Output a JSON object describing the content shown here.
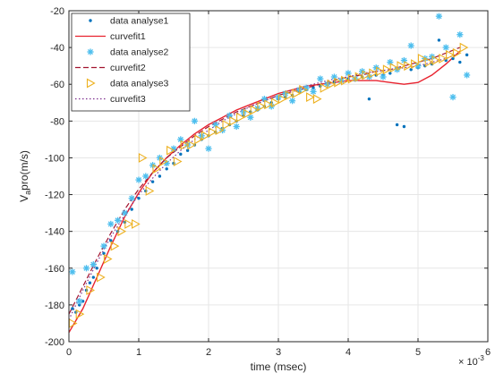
{
  "chart_data": {
    "type": "scatter",
    "title": "",
    "xlabel": "time (msec)",
    "ylabel": "V",
    "ylabel_sub": "a",
    "ylabel_rest": "pro(m/s)",
    "x_exponent_label": "× 10",
    "x_exponent_power": "-3",
    "xlim": [
      0,
      6
    ],
    "ylim": [
      -200,
      -20
    ],
    "x_ticks": [
      0,
      1,
      2,
      3,
      4,
      5,
      6
    ],
    "y_ticks": [
      -200,
      -180,
      -160,
      -140,
      -120,
      -100,
      -80,
      -60,
      -40,
      -20
    ],
    "grid": true,
    "legend_position": "top-left",
    "legend": [
      {
        "label": "data analyse1",
        "style": "dot",
        "color": "#0072bd"
      },
      {
        "label": "curvefit1",
        "style": "line",
        "color": "#e8222e"
      },
      {
        "label": "data analyse2",
        "style": "asterisk",
        "color": "#4dbeee"
      },
      {
        "label": "curvefit2",
        "style": "dashed",
        "color": "#a2142f"
      },
      {
        "label": "data analyse3",
        "style": "triangle",
        "color": "#edb120"
      },
      {
        "label": "curvefit3",
        "style": "dotted",
        "color": "#7e2f8e"
      }
    ],
    "series": [
      {
        "name": "data analyse1",
        "marker": "dot",
        "color": "#0072bd",
        "x": [
          0.05,
          0.1,
          0.15,
          0.2,
          0.25,
          0.3,
          0.35,
          0.4,
          0.5,
          0.6,
          0.7,
          0.8,
          0.9,
          1.0,
          1.1,
          1.2,
          1.3,
          1.4,
          1.5,
          1.6,
          1.7,
          1.8,
          1.9,
          2.0,
          2.1,
          2.2,
          2.3,
          2.4,
          2.5,
          2.6,
          2.7,
          2.8,
          2.9,
          3.0,
          3.1,
          3.2,
          3.3,
          3.4,
          3.5,
          3.6,
          3.7,
          3.8,
          3.9,
          4.0,
          4.1,
          4.2,
          4.3,
          4.4,
          4.5,
          4.6,
          4.7,
          4.8,
          4.9,
          5.0,
          5.1,
          5.2,
          5.3,
          5.4,
          5.5,
          5.6,
          5.7
        ],
        "y": [
          -182,
          -184,
          -180,
          -178,
          -172,
          -168,
          -165,
          -160,
          -152,
          -145,
          -140,
          -135,
          -128,
          -122,
          -118,
          -113,
          -110,
          -106,
          -103,
          -98,
          -96,
          -93,
          -90,
          -88,
          -86,
          -84,
          -82,
          -80,
          -77,
          -75,
          -74,
          -72,
          -70,
          -68,
          -67,
          -66,
          -64,
          -63,
          -62,
          -61,
          -60,
          -59,
          -58,
          -57,
          -57,
          -56,
          -68,
          -55,
          -55,
          -54,
          -82,
          -83,
          -52,
          -51,
          -50,
          -49,
          -36,
          -47,
          -46,
          -48,
          -44
        ]
      },
      {
        "name": "data analyse2",
        "marker": "asterisk",
        "color": "#4dbeee",
        "x": [
          0.05,
          0.15,
          0.25,
          0.35,
          0.5,
          0.6,
          0.7,
          0.8,
          0.9,
          1.0,
          1.1,
          1.2,
          1.3,
          1.4,
          1.5,
          1.6,
          1.7,
          1.8,
          1.9,
          2.0,
          2.1,
          2.2,
          2.3,
          2.4,
          2.5,
          2.6,
          2.7,
          2.8,
          2.9,
          3.0,
          3.1,
          3.2,
          3.3,
          3.4,
          3.5,
          3.6,
          3.7,
          3.8,
          3.9,
          4.0,
          4.1,
          4.2,
          4.3,
          4.4,
          4.5,
          4.6,
          4.7,
          4.8,
          4.9,
          5.0,
          5.1,
          5.2,
          5.3,
          5.4,
          5.5,
          5.6,
          5.7
        ],
        "y": [
          -162,
          -178,
          -160,
          -158,
          -148,
          -136,
          -134,
          -130,
          -122,
          -112,
          -110,
          -104,
          -100,
          -103,
          -95,
          -90,
          -93,
          -80,
          -88,
          -95,
          -82,
          -85,
          -77,
          -83,
          -75,
          -78,
          -73,
          -68,
          -72,
          -67,
          -65,
          -69,
          -63,
          -62,
          -64,
          -57,
          -60,
          -56,
          -58,
          -54,
          -57,
          -53,
          -56,
          -51,
          -56,
          -48,
          -52,
          -47,
          -39,
          -50,
          -46,
          -45,
          -23,
          -40,
          -67,
          -33,
          -55
        ]
      },
      {
        "name": "data analyse3",
        "marker": "triangle",
        "color": "#edb120",
        "x": [
          0.05,
          0.15,
          0.3,
          0.45,
          0.55,
          0.65,
          0.75,
          0.85,
          0.95,
          1.05,
          1.15,
          1.25,
          1.35,
          1.45,
          1.55,
          1.65,
          1.75,
          1.85,
          1.95,
          2.05,
          2.15,
          2.25,
          2.35,
          2.45,
          2.55,
          2.65,
          2.75,
          2.85,
          2.95,
          3.05,
          3.15,
          3.25,
          3.35,
          3.45,
          3.55,
          3.65,
          3.75,
          3.85,
          3.95,
          4.05,
          4.15,
          4.25,
          4.35,
          4.45,
          4.55,
          4.65,
          4.75,
          4.85,
          4.95,
          5.05,
          5.15,
          5.25,
          5.35,
          5.45,
          5.55,
          5.65
        ],
        "y": [
          -190,
          -185,
          -172,
          -165,
          -155,
          -148,
          -140,
          -136,
          -136,
          -100,
          -118,
          -106,
          -102,
          -96,
          -102,
          -93,
          -93,
          -90,
          -88,
          -86,
          -85,
          -82,
          -80,
          -78,
          -76,
          -74,
          -72,
          -71,
          -70,
          -68,
          -66,
          -65,
          -63,
          -67,
          -68,
          -62,
          -60,
          -59,
          -58,
          -57,
          -56,
          -55,
          -54,
          -53,
          -52,
          -51,
          -50,
          -50,
          -49,
          -46,
          -48,
          -47,
          -46,
          -44,
          -43,
          -40
        ]
      }
    ],
    "fits": [
      {
        "name": "curvefit1",
        "style": "solid",
        "color": "#e8222e",
        "x": [
          0,
          0.2,
          0.4,
          0.6,
          0.8,
          1.0,
          1.2,
          1.4,
          1.6,
          1.8,
          2.0,
          2.2,
          2.4,
          2.6,
          2.8,
          3.0,
          3.2,
          3.4,
          3.6,
          3.8,
          4.0,
          4.2,
          4.4,
          4.6,
          4.8,
          5.0,
          5.2,
          5.4,
          5.6
        ],
        "y": [
          -195,
          -182,
          -165,
          -148,
          -132,
          -119,
          -108,
          -100,
          -93,
          -87,
          -82,
          -78,
          -74,
          -71,
          -68,
          -65,
          -63,
          -61,
          -60,
          -59,
          -58,
          -58,
          -58,
          -59,
          -60,
          -59,
          -55,
          -49,
          -42
        ]
      },
      {
        "name": "curvefit2",
        "style": "dashed",
        "color": "#a2142f",
        "x": [
          0,
          0.2,
          0.4,
          0.6,
          0.8,
          1.0,
          1.2,
          1.4,
          1.6,
          1.8,
          2.0,
          2.2,
          2.4,
          2.6,
          2.8,
          3.0,
          3.2,
          3.4,
          3.6,
          3.8,
          4.0,
          4.2,
          4.4,
          4.6,
          4.8,
          5.0,
          5.2,
          5.4,
          5.6
        ],
        "y": [
          -185,
          -170,
          -155,
          -141,
          -128,
          -117,
          -108,
          -100,
          -94,
          -88,
          -83,
          -79,
          -75,
          -72,
          -69,
          -66,
          -64,
          -62,
          -60,
          -58,
          -56,
          -55,
          -53,
          -52,
          -50,
          -48,
          -46,
          -43,
          -40
        ]
      },
      {
        "name": "curvefit3",
        "style": "dotted",
        "color": "#7e2f8e",
        "x": [
          0,
          0.2,
          0.4,
          0.6,
          0.8,
          1.0,
          1.2,
          1.4,
          1.6,
          1.8,
          2.0,
          2.2,
          2.4,
          2.6,
          2.8,
          3.0,
          3.2,
          3.4,
          3.6,
          3.8,
          4.0,
          4.2,
          4.4,
          4.6,
          4.8,
          5.0,
          5.2,
          5.4,
          5.6
        ],
        "y": [
          -188,
          -172,
          -157,
          -143,
          -131,
          -120,
          -111,
          -103,
          -96,
          -90,
          -85,
          -80,
          -76,
          -72,
          -69,
          -66,
          -63,
          -61,
          -59,
          -57,
          -56,
          -54,
          -53,
          -52,
          -51,
          -50,
          -48,
          -46,
          -43
        ]
      }
    ]
  }
}
